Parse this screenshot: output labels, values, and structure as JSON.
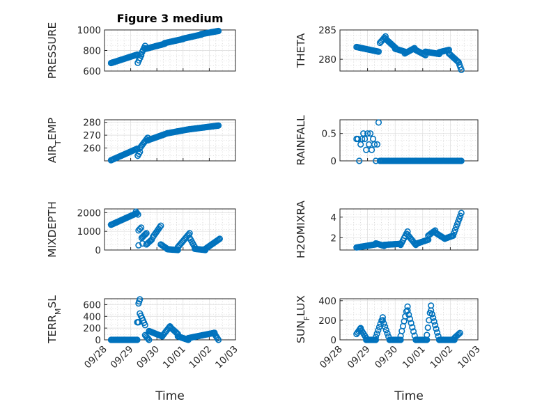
{
  "figure": {
    "title": "Figure 3 medium"
  },
  "colors": {
    "marker": "#0072BD",
    "axis": "#262626"
  },
  "chart_data": [
    {
      "type": "scatter",
      "marker": "circle-open",
      "grid": "major+minor",
      "title": "Figure 3 medium",
      "ylabel": "PRESSURE",
      "ylim": [
        600,
        1000
      ],
      "yticks": [
        "600",
        "800",
        "1000"
      ],
      "xlim": [
        "09/28",
        "10/03"
      ],
      "segments": [
        {
          "x0": 0.25,
          "x1": 1.25,
          "y0": 678,
          "y1": 760
        },
        {
          "x0": 1.27,
          "x1": 1.4,
          "y0": 680,
          "y1": 752
        },
        {
          "x0": 1.4,
          "x1": 1.55,
          "y0": 765,
          "y1": 845
        },
        {
          "x0": 1.55,
          "x1": 2.3,
          "y0": 815,
          "y1": 865
        },
        {
          "x0": 2.3,
          "x1": 3.0,
          "y0": 872,
          "y1": 912
        },
        {
          "x0": 3.0,
          "x1": 3.7,
          "y0": 915,
          "y1": 955
        },
        {
          "x0": 3.7,
          "x1": 4.35,
          "y0": 960,
          "y1": 990
        }
      ]
    },
    {
      "type": "scatter",
      "marker": "circle-open",
      "grid": "major+minor",
      "ylabel": "THETA",
      "ylim": [
        278,
        285
      ],
      "yticks": [
        "280",
        "285"
      ],
      "xlim": [
        "09/28",
        "10/03"
      ],
      "segments": [
        {
          "x0": 0.6,
          "x1": 1.4,
          "y0": 282.1,
          "y1": 281.3
        },
        {
          "x0": 1.45,
          "x1": 1.65,
          "y0": 282.8,
          "y1": 283.9
        },
        {
          "x0": 1.65,
          "x1": 2.0,
          "y0": 283.5,
          "y1": 282.0
        },
        {
          "x0": 2.0,
          "x1": 2.35,
          "y0": 281.8,
          "y1": 281.3
        },
        {
          "x0": 2.35,
          "x1": 2.7,
          "y0": 281.0,
          "y1": 281.9
        },
        {
          "x0": 2.7,
          "x1": 3.1,
          "y0": 281.7,
          "y1": 280.7
        },
        {
          "x0": 3.1,
          "x1": 3.6,
          "y0": 281.3,
          "y1": 280.9
        },
        {
          "x0": 3.6,
          "x1": 3.95,
          "y0": 281.2,
          "y1": 281.6
        },
        {
          "x0": 3.95,
          "x1": 4.3,
          "y0": 281.0,
          "y1": 279.5
        },
        {
          "x0": 4.3,
          "x1": 4.4,
          "y0": 279.5,
          "y1": 278.2
        }
      ]
    },
    {
      "type": "scatter",
      "marker": "circle-open",
      "grid": "major+minor",
      "ylabel": "AIR_TEMP",
      "ylim": [
        250,
        282
      ],
      "yticks": [
        "260",
        "270",
        "280"
      ],
      "xlim": [
        "09/28",
        "10/03"
      ],
      "segments": [
        {
          "x0": 0.25,
          "x1": 1.25,
          "y0": 250.5,
          "y1": 259.5
        },
        {
          "x0": 1.27,
          "x1": 1.35,
          "y0": 254,
          "y1": 257
        },
        {
          "x0": 1.35,
          "x1": 1.65,
          "y0": 260,
          "y1": 268
        },
        {
          "x0": 1.65,
          "x1": 2.4,
          "y0": 266,
          "y1": 271.5
        },
        {
          "x0": 2.4,
          "x1": 3.2,
          "y0": 271.5,
          "y1": 274.5
        },
        {
          "x0": 3.2,
          "x1": 4.35,
          "y0": 274.5,
          "y1": 277.5
        }
      ]
    },
    {
      "type": "scatter",
      "marker": "circle-open",
      "grid": "major+minor",
      "ylabel": "RAINFALL",
      "ylim": [
        0,
        0.75
      ],
      "yticks": [
        "0",
        "0.5"
      ],
      "xlim": [
        "09/28",
        "10/03"
      ],
      "points": [
        [
          0.6,
          0.4
        ],
        [
          0.65,
          0.4
        ],
        [
          0.7,
          0.0
        ],
        [
          0.75,
          0.3
        ],
        [
          0.8,
          0.4
        ],
        [
          0.85,
          0.5
        ],
        [
          0.9,
          0.4
        ],
        [
          0.95,
          0.2
        ],
        [
          1.0,
          0.5
        ],
        [
          1.05,
          0.3
        ],
        [
          1.1,
          0.5
        ],
        [
          1.15,
          0.2
        ],
        [
          1.2,
          0.4
        ],
        [
          1.25,
          0.3
        ],
        [
          1.3,
          0.0
        ],
        [
          1.35,
          0.3
        ],
        [
          1.4,
          0.7
        ]
      ],
      "segments": [
        {
          "x0": 1.45,
          "x1": 4.4,
          "y0": 0,
          "y1": 0
        }
      ]
    },
    {
      "type": "scatter",
      "marker": "circle-open",
      "grid": "major+minor",
      "ylabel": "MIXDEPTH",
      "ylim": [
        0,
        2200
      ],
      "yticks": [
        "0",
        "1000",
        "2000"
      ],
      "xlim": [
        "09/28",
        "10/03"
      ],
      "segments": [
        {
          "x0": 0.25,
          "x1": 1.2,
          "y0": 1350,
          "y1": 1950
        },
        {
          "x0": 1.2,
          "x1": 1.28,
          "y0": 2050,
          "y1": 1900
        },
        {
          "x0": 1.3,
          "x1": 1.4,
          "y0": 1050,
          "y1": 1200
        },
        {
          "x0": 1.42,
          "x1": 1.6,
          "y0": 650,
          "y1": 900
        },
        {
          "x0": 1.6,
          "x1": 1.8,
          "y0": 300,
          "y1": 550
        },
        {
          "x0": 1.85,
          "x1": 2.15,
          "y0": 700,
          "y1": 1300
        },
        {
          "x0": 2.15,
          "x1": 2.4,
          "y0": 300,
          "y1": 60
        },
        {
          "x0": 2.4,
          "x1": 2.8,
          "y0": 40,
          "y1": 0
        },
        {
          "x0": 2.8,
          "x1": 3.25,
          "y0": 150,
          "y1": 900
        },
        {
          "x0": 3.25,
          "x1": 3.45,
          "y0": 650,
          "y1": 150
        },
        {
          "x0": 3.45,
          "x1": 3.85,
          "y0": 60,
          "y1": 0
        },
        {
          "x0": 3.85,
          "x1": 4.4,
          "y0": 60,
          "y1": 600
        }
      ],
      "points": [
        [
          1.3,
          250
        ],
        [
          1.45,
          350
        ]
      ]
    },
    {
      "type": "scatter",
      "marker": "circle-open",
      "grid": "major+minor",
      "ylabel": "H2OMIXRA",
      "ylim": [
        0.8,
        4.8
      ],
      "yticks": [
        "2",
        "4"
      ],
      "xlim": [
        "09/28",
        "10/03"
      ],
      "segments": [
        {
          "x0": 0.6,
          "x1": 1.3,
          "y0": 1.05,
          "y1": 1.35
        },
        {
          "x0": 1.3,
          "x1": 1.6,
          "y0": 1.45,
          "y1": 1.2
        },
        {
          "x0": 1.6,
          "x1": 2.2,
          "y0": 1.3,
          "y1": 1.4
        },
        {
          "x0": 2.2,
          "x1": 2.45,
          "y0": 1.3,
          "y1": 2.6
        },
        {
          "x0": 2.45,
          "x1": 2.75,
          "y0": 2.3,
          "y1": 1.3
        },
        {
          "x0": 2.75,
          "x1": 3.2,
          "y0": 1.4,
          "y1": 1.8
        },
        {
          "x0": 3.2,
          "x1": 3.45,
          "y0": 2.2,
          "y1": 2.7
        },
        {
          "x0": 3.45,
          "x1": 3.8,
          "y0": 2.5,
          "y1": 1.9
        },
        {
          "x0": 3.8,
          "x1": 4.1,
          "y0": 1.9,
          "y1": 2.2
        },
        {
          "x0": 4.1,
          "x1": 4.4,
          "y0": 2.2,
          "y1": 4.4
        }
      ]
    },
    {
      "type": "scatter",
      "marker": "circle-open",
      "grid": "major+minor",
      "ylabel": "TERR_MSL",
      "ylim": [
        0,
        700
      ],
      "yticks": [
        "0",
        "200",
        "400",
        "600"
      ],
      "xlim": [
        "09/28",
        "10/03"
      ],
      "xticks": [
        "09/28",
        "09/29",
        "09/30",
        "10/01",
        "10/02",
        "10/03"
      ],
      "xlabel": "Time",
      "segments": [
        {
          "x0": 0.25,
          "x1": 1.25,
          "y0": 0,
          "y1": 0
        },
        {
          "x0": 1.25,
          "x1": 1.3,
          "y0": 300,
          "y1": 300
        },
        {
          "x0": 1.3,
          "x1": 1.35,
          "y0": 620,
          "y1": 690
        },
        {
          "x0": 1.35,
          "x1": 1.55,
          "y0": 450,
          "y1": 250
        },
        {
          "x0": 1.55,
          "x1": 1.7,
          "y0": 80,
          "y1": 0
        },
        {
          "x0": 1.7,
          "x1": 2.2,
          "y0": 150,
          "y1": 60
        },
        {
          "x0": 2.2,
          "x1": 2.5,
          "y0": 60,
          "y1": 230
        },
        {
          "x0": 2.5,
          "x1": 2.8,
          "y0": 220,
          "y1": 100
        },
        {
          "x0": 2.8,
          "x1": 3.2,
          "y0": 60,
          "y1": 0
        },
        {
          "x0": 3.2,
          "x1": 4.2,
          "y0": 30,
          "y1": 120
        },
        {
          "x0": 4.2,
          "x1": 4.35,
          "y0": 100,
          "y1": 0
        }
      ]
    },
    {
      "type": "scatter",
      "marker": "circle-open",
      "grid": "major+minor",
      "ylabel": "SUN_FLUX",
      "ylim": [
        0,
        420
      ],
      "yticks": [
        "0",
        "200",
        "400"
      ],
      "xlim": [
        "09/28",
        "10/03"
      ],
      "xticks": [
        "09/28",
        "09/29",
        "09/30",
        "10/01",
        "10/02",
        "10/03"
      ],
      "xlabel": "Time",
      "segments": [
        {
          "x0": 0.6,
          "x1": 0.75,
          "y0": 60,
          "y1": 120
        },
        {
          "x0": 0.75,
          "x1": 0.95,
          "y0": 110,
          "y1": 20
        },
        {
          "x0": 0.95,
          "x1": 1.3,
          "y0": 0,
          "y1": 0
        },
        {
          "x0": 1.3,
          "x1": 1.55,
          "y0": 30,
          "y1": 230
        },
        {
          "x0": 1.55,
          "x1": 1.8,
          "y0": 200,
          "y1": 0
        },
        {
          "x0": 1.8,
          "x1": 2.2,
          "y0": 0,
          "y1": 0
        },
        {
          "x0": 2.2,
          "x1": 2.45,
          "y0": 40,
          "y1": 340
        },
        {
          "x0": 2.45,
          "x1": 2.75,
          "y0": 300,
          "y1": 0
        },
        {
          "x0": 2.75,
          "x1": 3.15,
          "y0": 0,
          "y1": 0
        },
        {
          "x0": 3.15,
          "x1": 3.3,
          "y0": 50,
          "y1": 350
        },
        {
          "x0": 3.3,
          "x1": 3.6,
          "y0": 300,
          "y1": 0
        },
        {
          "x0": 3.6,
          "x1": 4.15,
          "y0": 0,
          "y1": 0
        },
        {
          "x0": 4.15,
          "x1": 4.35,
          "y0": 20,
          "y1": 70
        }
      ]
    }
  ]
}
